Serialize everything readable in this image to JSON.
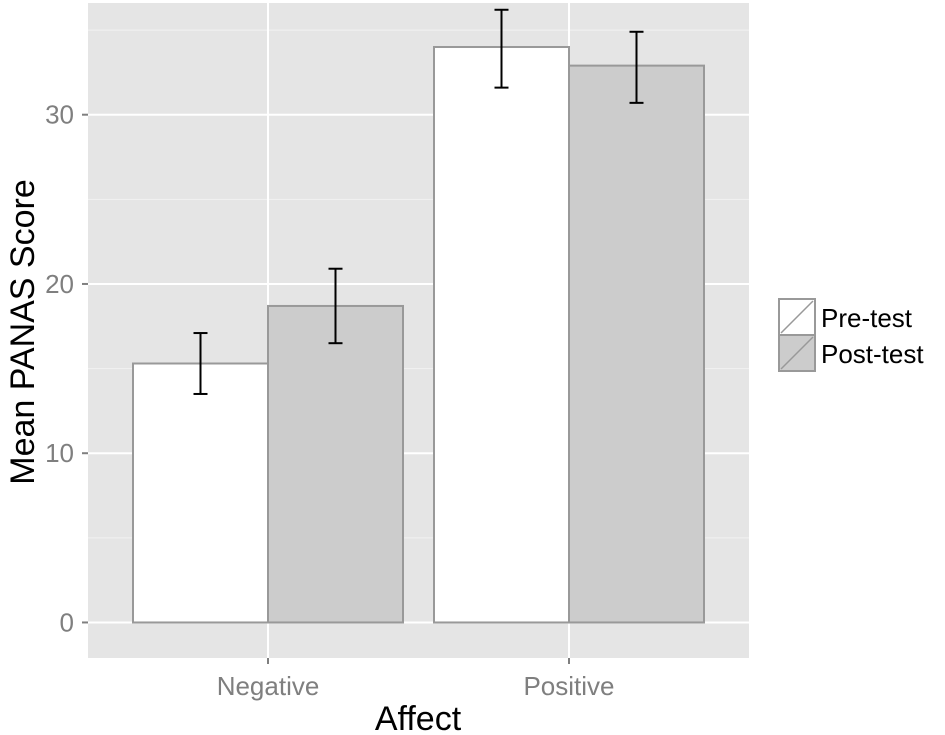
{
  "chart_data": {
    "type": "bar",
    "title": "",
    "xlabel": "Affect",
    "ylabel": "Mean PANAS Score",
    "categories": [
      "Negative",
      "Positive"
    ],
    "ylim": [
      -2.1,
      36.6
    ],
    "yticks": [
      0,
      10,
      20,
      30
    ],
    "ytick_labels": [
      "0",
      "10",
      "20",
      "30"
    ],
    "grid": true,
    "legend_position": "right",
    "series": [
      {
        "name": "Pre-test",
        "values": [
          15.3,
          34.0
        ],
        "err_low": [
          13.5,
          31.6
        ],
        "err_high": [
          17.1,
          36.2
        ],
        "fill": "#ffffff"
      },
      {
        "name": "Post-test",
        "values": [
          18.7,
          32.9
        ],
        "err_low": [
          16.5,
          30.7
        ],
        "err_high": [
          20.9,
          34.9
        ],
        "fill": "#cccccc"
      }
    ]
  },
  "colors": {
    "panel_bg": "#e5e5e5",
    "grid_major": "#ffffff",
    "grid_minor": "#f2f2f2",
    "bar_stroke": "#999999",
    "errorbar": "#000000",
    "tick_text": "#7f7f7f"
  }
}
